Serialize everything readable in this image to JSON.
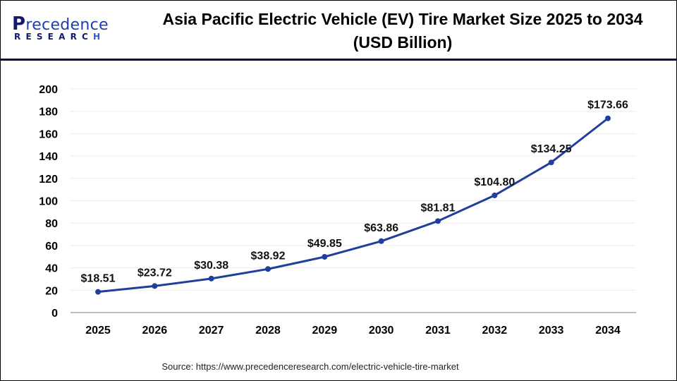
{
  "brand": {
    "logo_initial": "P",
    "logo_word": "recedence",
    "logo_sub_main": "RESEARC",
    "logo_sub_last": "H"
  },
  "chart_data": {
    "type": "line",
    "title": "Asia Pacific Electric Vehicle (EV) Tire Market Size 2025 to 2034 (USD Billion)",
    "title_line1": "Asia Pacific Electric Vehicle (EV) Tire Market Size 2025 to 2034",
    "title_line2": "(USD Billion)",
    "xlabel": "",
    "ylabel": "",
    "categories": [
      "2025",
      "2026",
      "2027",
      "2028",
      "2029",
      "2030",
      "2031",
      "2032",
      "2033",
      "2034"
    ],
    "series": [
      {
        "name": "Asia Pacific EV Tire Market Size",
        "values": [
          18.51,
          23.72,
          30.38,
          38.92,
          49.85,
          63.86,
          81.81,
          104.8,
          134.25,
          173.66
        ],
        "labels": [
          "$18.51",
          "$23.72",
          "$30.38",
          "$38.92",
          "$49.85",
          "$63.86",
          "$81.81",
          "$104.80",
          "$134.25",
          "$173.66"
        ],
        "color": "#1f3f9a"
      }
    ],
    "ylim": [
      0,
      200
    ],
    "yticks": [
      0,
      20,
      40,
      60,
      80,
      100,
      120,
      140,
      160,
      180,
      200
    ],
    "ytick_labels": [
      "0",
      "20",
      "40",
      "60",
      "80",
      "100",
      "120",
      "140",
      "160",
      "180",
      "200"
    ],
    "grid": true,
    "legend": "none"
  },
  "source": "Source: https://www.precedenceresearch.com/electric-vehicle-tire-market"
}
